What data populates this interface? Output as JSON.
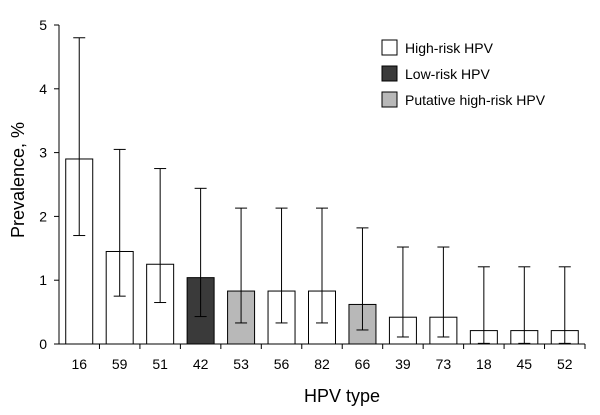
{
  "chart_data": {
    "type": "bar",
    "title": "",
    "xlabel": "HPV type",
    "ylabel": "Prevalence, %",
    "ylim": [
      0,
      5
    ],
    "yticks": [
      0,
      1,
      2,
      3,
      4,
      5
    ],
    "grid": false,
    "legend_position": "top-right",
    "legend": [
      {
        "key": "high",
        "label": "High-risk HPV",
        "color": "#ffffff"
      },
      {
        "key": "low",
        "label": "Low-risk HPV",
        "color": "#3a3a3a"
      },
      {
        "key": "putative",
        "label": "Putative high-risk HPV",
        "color": "#b8b8b8"
      }
    ],
    "categories": [
      "16",
      "59",
      "51",
      "42",
      "53",
      "56",
      "82",
      "66",
      "39",
      "73",
      "18",
      "45",
      "52"
    ],
    "values": [
      2.9,
      1.45,
      1.25,
      1.04,
      0.83,
      0.83,
      0.83,
      0.62,
      0.42,
      0.42,
      0.21,
      0.21,
      0.21
    ],
    "error_upper": [
      4.8,
      3.05,
      2.75,
      2.44,
      2.13,
      2.13,
      2.13,
      1.82,
      1.52,
      1.52,
      1.21,
      1.21,
      1.21
    ],
    "error_lower": [
      1.7,
      0.75,
      0.65,
      0.43,
      0.33,
      0.33,
      0.33,
      0.22,
      0.11,
      0.11,
      0.01,
      0.01,
      0.01
    ],
    "groups": [
      "high",
      "high",
      "high",
      "low",
      "putative",
      "high",
      "high",
      "putative",
      "high",
      "high",
      "high",
      "high",
      "high"
    ]
  }
}
